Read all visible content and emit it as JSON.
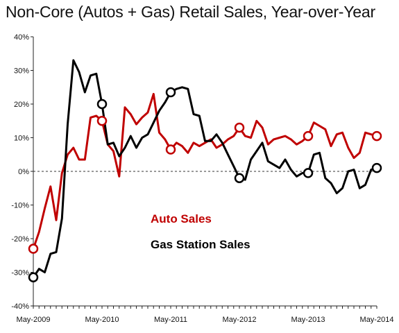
{
  "chart_data": {
    "type": "line",
    "title": "Non-Core (Autos + Gas) Retail Sales, Year-over-Year",
    "xlabel": "",
    "ylabel": "",
    "ylim": [
      -40,
      40
    ],
    "yticks": [
      -40,
      -30,
      -20,
      -10,
      0,
      10,
      20,
      30,
      40
    ],
    "ytick_labels": [
      "-40%",
      "-30%",
      "-20%",
      "-10%",
      "0%",
      "10%",
      "20%",
      "30%",
      "40%"
    ],
    "xlim": [
      0,
      60
    ],
    "xticks": [
      0,
      12,
      24,
      36,
      48,
      60
    ],
    "xtick_labels": [
      "May-2009",
      "May-2010",
      "May-2011",
      "May-2012",
      "May-2013",
      "May-2014"
    ],
    "x_description": "monthly observations, May-2009 through May-2014",
    "grid": false,
    "zero_line": "dashed",
    "colors": {
      "auto": "#c00000",
      "gas": "#000000"
    },
    "series": [
      {
        "name": "Auto Sales",
        "color": "#c00000",
        "values": [
          -23,
          -18,
          -11,
          -4.5,
          -14.5,
          -0.5,
          5,
          7,
          3.5,
          3.5,
          16,
          16.5,
          15,
          8,
          6,
          -1.5,
          19,
          17,
          14,
          16,
          17.5,
          23,
          11.5,
          9.5,
          6.5,
          8.5,
          7.5,
          5.5,
          8.5,
          7.5,
          8.5,
          9.5,
          7,
          8,
          9.5,
          10.5,
          13,
          10.5,
          10,
          15,
          13,
          8,
          9.5,
          10,
          10.5,
          9.5,
          8,
          9,
          10.5,
          14.5,
          13.5,
          12.5,
          7.5,
          11,
          11.5,
          7,
          4,
          5.5,
          11.5,
          11,
          10.5
        ],
        "markers": [
          0,
          12,
          24,
          36,
          48,
          60
        ]
      },
      {
        "name": "Gas Station Sales",
        "color": "#000000",
        "values": [
          -31.5,
          -29,
          -30,
          -24.5,
          -24,
          -14,
          14,
          33,
          29.5,
          23.5,
          28.5,
          29,
          20,
          8,
          8.5,
          4.5,
          7,
          10.5,
          7,
          10,
          11,
          14.5,
          18,
          20.5,
          23.5,
          24.5,
          25,
          24.5,
          17,
          16.5,
          9,
          9,
          11,
          8.5,
          5,
          1.5,
          -2,
          -2.5,
          3.5,
          6,
          8.5,
          3,
          2,
          1,
          3.5,
          0.5,
          -1.5,
          -0.5,
          -0.5,
          5,
          5.5,
          -2,
          -3.5,
          -6.5,
          -5,
          0,
          0.5,
          -5,
          -4,
          0.5,
          1
        ],
        "markers": [
          0,
          12,
          24,
          36,
          48,
          60
        ]
      }
    ],
    "legend": [
      "Auto Sales",
      "Gas Station Sales"
    ],
    "legend_placement": "bottom-left inside plot"
  }
}
